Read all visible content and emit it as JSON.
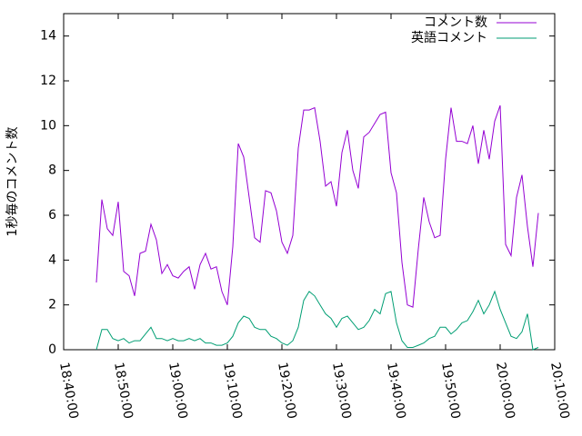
{
  "chart_data": {
    "type": "line",
    "ylabel": "1秒毎のコメント数",
    "x": [
      "18:46:00",
      "18:47:00",
      "18:48:00",
      "18:49:00",
      "18:50:00",
      "18:51:00",
      "18:52:00",
      "18:53:00",
      "18:54:00",
      "18:55:00",
      "18:56:00",
      "18:57:00",
      "18:58:00",
      "18:59:00",
      "19:00:00",
      "19:01:00",
      "19:02:00",
      "19:03:00",
      "19:04:00",
      "19:05:00",
      "19:06:00",
      "19:07:00",
      "19:08:00",
      "19:09:00",
      "19:10:00",
      "19:11:00",
      "19:12:00",
      "19:13:00",
      "19:14:00",
      "19:15:00",
      "19:16:00",
      "19:17:00",
      "19:18:00",
      "19:19:00",
      "19:20:00",
      "19:21:00",
      "19:22:00",
      "19:23:00",
      "19:24:00",
      "19:25:00",
      "19:26:00",
      "19:27:00",
      "19:28:00",
      "19:29:00",
      "19:30:00",
      "19:31:00",
      "19:32:00",
      "19:33:00",
      "19:34:00",
      "19:35:00",
      "19:36:00",
      "19:37:00",
      "19:38:00",
      "19:39:00",
      "19:40:00",
      "19:41:00",
      "19:42:00",
      "19:43:00",
      "19:44:00",
      "19:45:00",
      "19:46:00",
      "19:47:00",
      "19:48:00",
      "19:49:00",
      "19:50:00",
      "19:51:00",
      "19:52:00",
      "19:53:00",
      "19:54:00",
      "19:55:00",
      "19:56:00",
      "19:57:00",
      "19:58:00",
      "19:59:00",
      "20:00:00",
      "20:01:00",
      "20:02:00",
      "20:03:00",
      "20:04:00",
      "20:05:00",
      "20:06:00",
      "20:07:00"
    ],
    "series": [
      {
        "name": "コメント数",
        "color": "#9400d3",
        "values": [
          3.0,
          6.7,
          5.4,
          5.1,
          6.6,
          3.5,
          3.3,
          2.4,
          4.3,
          4.4,
          5.6,
          4.9,
          3.4,
          3.8,
          3.3,
          3.2,
          3.5,
          3.7,
          2.7,
          3.8,
          4.3,
          3.6,
          3.7,
          2.6,
          2.0,
          4.6,
          9.2,
          8.6,
          6.8,
          5.0,
          4.8,
          7.1,
          7.0,
          6.2,
          4.8,
          4.3,
          5.1,
          9.0,
          10.7,
          10.7,
          10.8,
          9.3,
          7.3,
          7.5,
          6.4,
          8.8,
          9.8,
          8.0,
          7.2,
          9.5,
          9.7,
          10.1,
          10.5,
          10.6,
          7.9,
          7.0,
          3.9,
          2.0,
          1.9,
          4.5,
          6.8,
          5.7,
          5.0,
          5.1,
          8.5,
          10.8,
          9.3,
          9.3,
          9.2,
          10.0,
          8.3,
          9.8,
          8.5,
          10.2,
          10.9,
          4.7,
          4.2,
          6.8,
          7.8,
          5.5,
          3.7,
          6.1
        ]
      },
      {
        "name": "英語コメント",
        "color": "#009e73",
        "values": [
          0,
          0.9,
          0.9,
          0.5,
          0.4,
          0.5,
          0.3,
          0.4,
          0.4,
          0.7,
          1.0,
          0.5,
          0.5,
          0.4,
          0.5,
          0.4,
          0.4,
          0.5,
          0.4,
          0.5,
          0.3,
          0.3,
          0.2,
          0.2,
          0.3,
          0.6,
          1.2,
          1.5,
          1.4,
          1.0,
          0.9,
          0.9,
          0.6,
          0.5,
          0.3,
          0.2,
          0.4,
          1.0,
          2.2,
          2.6,
          2.4,
          2.0,
          1.6,
          1.4,
          1.0,
          1.4,
          1.5,
          1.2,
          0.9,
          1.0,
          1.3,
          1.8,
          1.6,
          2.5,
          2.6,
          1.2,
          0.4,
          0.1,
          0.1,
          0.2,
          0.3,
          0.5,
          0.6,
          1.0,
          1.0,
          0.7,
          0.9,
          1.2,
          1.3,
          1.7,
          2.2,
          1.6,
          2.0,
          2.6,
          1.8,
          1.2,
          0.6,
          0.5,
          0.8,
          1.6,
          0.0,
          0.1
        ]
      }
    ],
    "xlim": [
      "18:40:00",
      "20:10:00"
    ],
    "xticks": [
      "18:40:00",
      "18:50:00",
      "19:00:00",
      "19:10:00",
      "19:20:00",
      "19:30:00",
      "19:40:00",
      "19:50:00",
      "20:00:00",
      "20:10:00"
    ],
    "ylim": [
      0,
      15
    ],
    "yticks": [
      0,
      2,
      4,
      6,
      8,
      10,
      12,
      14
    ],
    "legend": "upper right",
    "grid": false
  }
}
